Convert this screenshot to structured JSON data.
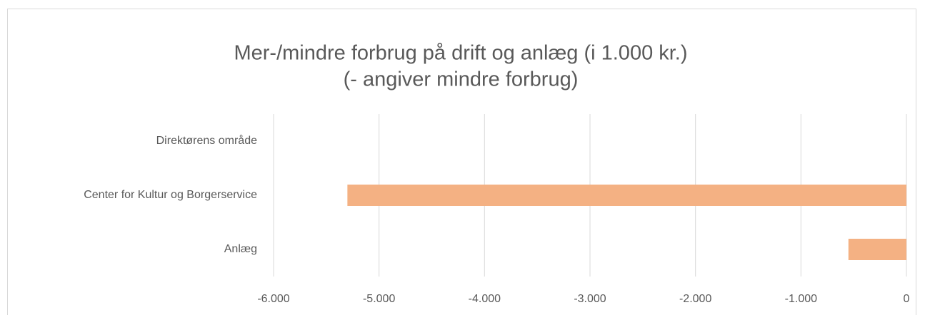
{
  "chart_data": {
    "type": "bar",
    "orientation": "horizontal",
    "title": "Mer-/mindre forbrug på drift og anlæg (i 1.000 kr.)",
    "subtitle": "(- angiver mindre forbrug)",
    "categories": [
      "Direktørens område",
      "Center for Kultur og Borgerservice",
      "Anlæg"
    ],
    "values": [
      0,
      -5300,
      -550
    ],
    "color": "#f4b183",
    "xlim": [
      -6000,
      0
    ],
    "xticks": [
      {
        "value": -6000,
        "label": "-6.000"
      },
      {
        "value": -5000,
        "label": "-5.000"
      },
      {
        "value": -4000,
        "label": "-4.000"
      },
      {
        "value": -3000,
        "label": "-3.000"
      },
      {
        "value": -2000,
        "label": "-2.000"
      },
      {
        "value": -1000,
        "label": "-1.000"
      },
      0
    ],
    "grid": true
  }
}
